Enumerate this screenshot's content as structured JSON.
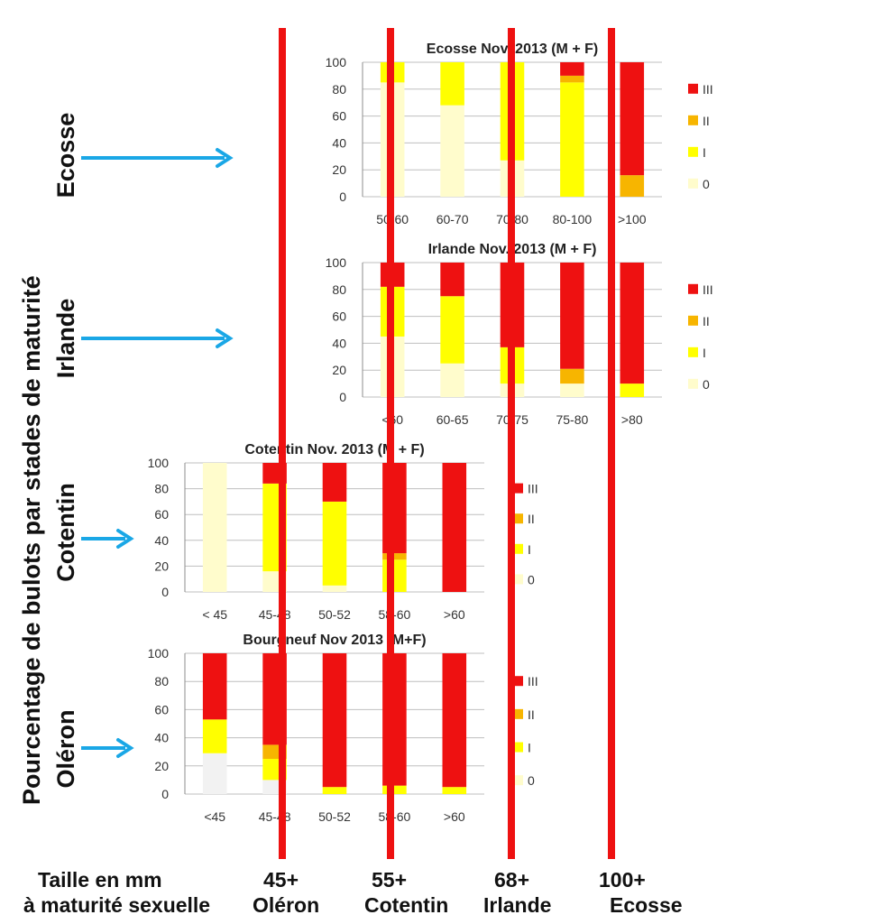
{
  "y_title": "Pourcentage de bulots par stades de maturité",
  "rows": [
    {
      "region": "Ecosse"
    },
    {
      "region": "Irlande"
    },
    {
      "region": "Cotentin"
    },
    {
      "region": "Oléron"
    }
  ],
  "footer": {
    "line1": "Taille  en mm",
    "line2": "à maturité sexuelle",
    "markers": [
      {
        "size": "45+",
        "place": "Oléron"
      },
      {
        "size": "55+",
        "place": "Cotentin"
      },
      {
        "size": "68+",
        "place": "Irlande"
      },
      {
        "size": "100+",
        "place": "Ecosse"
      }
    ]
  },
  "stage_colors": {
    "0": "#fffccc",
    "I": "#ffff00",
    "II": "#f7b500",
    "III": "#ee1111"
  },
  "accent": {
    "marker_line": "#ee1111",
    "arrow": "#1aa7e6"
  },
  "chart_data": [
    {
      "type": "bar",
      "stacked": true,
      "title": "Ecosse Nov. 2013 (M + F)",
      "categories": [
        "50-60",
        "60-70",
        "70-80",
        "80-100",
        ">100"
      ],
      "series": [
        {
          "name": "0",
          "values": [
            85,
            68,
            27,
            0,
            0
          ]
        },
        {
          "name": "I",
          "values": [
            15,
            32,
            73,
            85,
            0
          ]
        },
        {
          "name": "II",
          "values": [
            0,
            0,
            0,
            5,
            16
          ]
        },
        {
          "name": "III",
          "values": [
            0,
            0,
            0,
            10,
            84
          ]
        }
      ],
      "yticks": [
        0,
        20,
        40,
        60,
        80,
        100
      ],
      "ylim": [
        0,
        100
      ],
      "grid": true,
      "legend": "right"
    },
    {
      "type": "bar",
      "stacked": true,
      "title": "Irlande Nov. 2013 (M + F)",
      "categories": [
        "<60",
        "60-65",
        "70-75",
        "75-80",
        ">80"
      ],
      "series": [
        {
          "name": "0",
          "values": [
            45,
            25,
            10,
            10,
            0
          ]
        },
        {
          "name": "I",
          "values": [
            37,
            50,
            27,
            0,
            10
          ]
        },
        {
          "name": "II",
          "values": [
            0,
            0,
            0,
            11,
            0
          ]
        },
        {
          "name": "III",
          "values": [
            18,
            25,
            63,
            79,
            90
          ]
        }
      ],
      "yticks": [
        0,
        20,
        40,
        60,
        80,
        100
      ],
      "ylim": [
        0,
        100
      ],
      "grid": true,
      "legend": "right"
    },
    {
      "type": "bar",
      "stacked": true,
      "title": "Cotentin Nov. 2013 (M + F)",
      "categories": [
        "< 45",
        "45-48",
        "50-52",
        "58-60",
        ">60"
      ],
      "series": [
        {
          "name": "0",
          "values": [
            100,
            16,
            5,
            0,
            0
          ]
        },
        {
          "name": "I",
          "values": [
            0,
            68,
            65,
            25,
            0
          ]
        },
        {
          "name": "II",
          "values": [
            0,
            0,
            0,
            5,
            0
          ]
        },
        {
          "name": "III",
          "values": [
            0,
            16,
            30,
            70,
            100
          ]
        }
      ],
      "yticks": [
        0,
        20,
        40,
        60,
        80,
        100
      ],
      "ylim": [
        0,
        100
      ],
      "grid": true,
      "legend": "right"
    },
    {
      "type": "bar",
      "stacked": true,
      "title": "Bourgneuf Nov 2013 (M+F)",
      "categories": [
        "<45",
        "45-48",
        "50-52",
        "58-60",
        ">60"
      ],
      "series": [
        {
          "name": "0",
          "values": [
            29,
            10,
            0,
            0,
            0
          ]
        },
        {
          "name": "I",
          "values": [
            24,
            15,
            5,
            6,
            5
          ]
        },
        {
          "name": "II",
          "values": [
            0,
            10,
            0,
            0,
            0
          ]
        },
        {
          "name": "III",
          "values": [
            47,
            65,
            95,
            94,
            95
          ]
        }
      ],
      "yticks": [
        0,
        20,
        40,
        60,
        80,
        100
      ],
      "ylim": [
        0,
        100
      ],
      "grid": true,
      "legend": "right"
    }
  ]
}
